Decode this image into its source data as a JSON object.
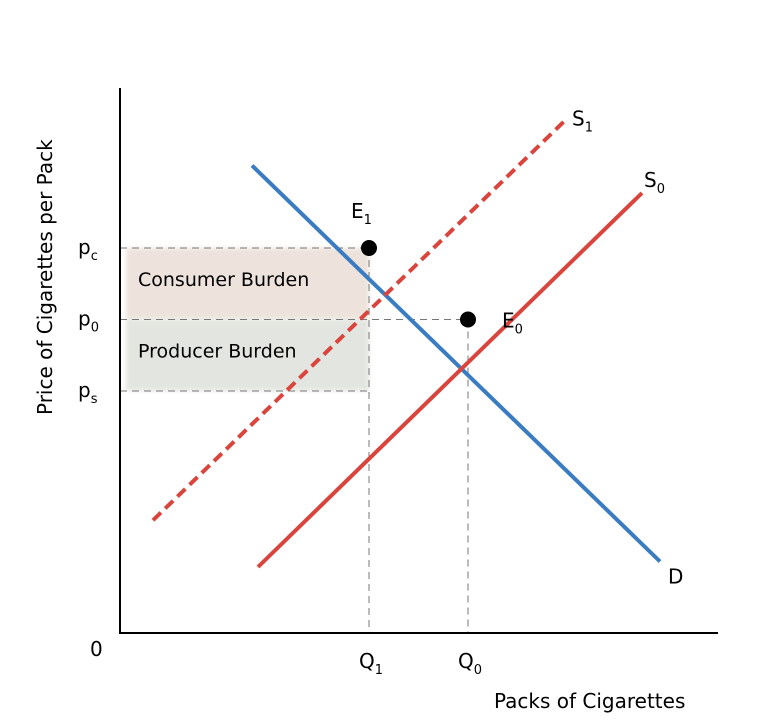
{
  "chart_data": {
    "type": "line",
    "xlabel": "Packs of Cigarettes",
    "ylabel": "Price of  Cigarettes per Pack",
    "origin_label": "0",
    "xlim": [
      0,
      10
    ],
    "ylim": [
      0,
      10
    ],
    "series": [
      {
        "name": "D",
        "style": "solid",
        "color": "#3a7cc2",
        "points": [
          [
            2.2,
            8.5
          ],
          [
            9.0,
            1.3
          ]
        ]
      },
      {
        "name": "S",
        "sub": "0",
        "style": "solid",
        "color": "#d9453d",
        "points": [
          [
            2.3,
            1.2
          ],
          [
            8.7,
            8.0
          ]
        ]
      },
      {
        "name": "S",
        "sub": "1",
        "style": "dashed",
        "color": "#d9453d",
        "points": [
          [
            0.55,
            2.05
          ],
          [
            7.4,
            9.3
          ]
        ]
      }
    ],
    "points": [
      {
        "name": "E",
        "sub": "1",
        "x": 4.15,
        "y": 7.0
      },
      {
        "name": "E",
        "sub": "0",
        "x": 5.8,
        "y": 5.7
      }
    ],
    "y_ticks": [
      {
        "label": "p",
        "sub": "c",
        "y": 7.0
      },
      {
        "label": "p",
        "sub": "0",
        "y": 5.7
      },
      {
        "label": "p",
        "sub": "s",
        "y": 4.4
      }
    ],
    "x_ticks": [
      {
        "label": "Q",
        "sub": "1",
        "x": 4.15
      },
      {
        "label": "Q",
        "sub": "0",
        "x": 5.8
      }
    ],
    "regions": [
      {
        "label": "Consumer Burden",
        "y_from": 5.7,
        "y_to": 7.0,
        "x_from": 0.1,
        "x_to": 4.15,
        "color": "#ede3dc"
      },
      {
        "label": "Producer Burden",
        "y_from": 4.4,
        "y_to": 5.7,
        "x_from": 0.1,
        "x_to": 4.15,
        "color": "#e3e6e0"
      }
    ]
  }
}
